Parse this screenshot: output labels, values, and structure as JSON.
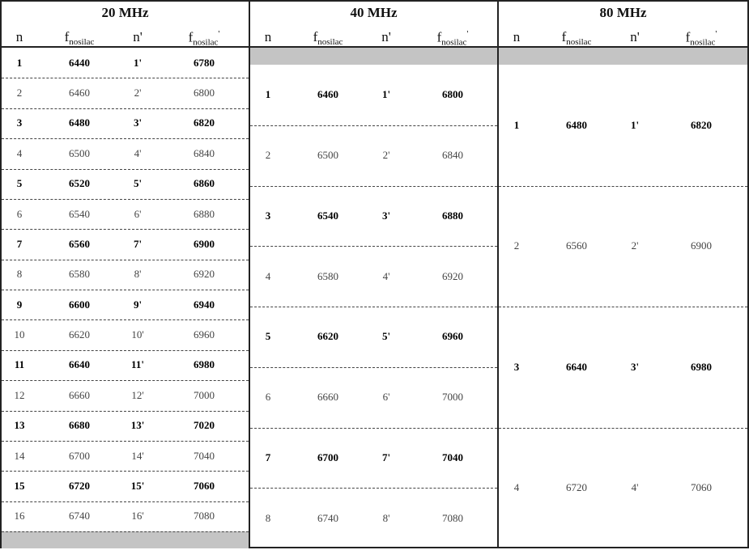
{
  "headers": {
    "n": "n",
    "f": "f",
    "f_sub": "nosilac",
    "n_prime": "n'",
    "f_prime_sub": "nosilac",
    "prime": "'"
  },
  "blocks": [
    {
      "title": "20 MHz",
      "gray_position": "bottom",
      "rows": [
        [
          "1",
          "6440",
          "1'",
          "6780"
        ],
        [
          "2",
          "6460",
          "2'",
          "6800"
        ],
        [
          "3",
          "6480",
          "3'",
          "6820"
        ],
        [
          "4",
          "6500",
          "4'",
          "6840"
        ],
        [
          "5",
          "6520",
          "5'",
          "6860"
        ],
        [
          "6",
          "6540",
          "6'",
          "6880"
        ],
        [
          "7",
          "6560",
          "7'",
          "6900"
        ],
        [
          "8",
          "6580",
          "8'",
          "6920"
        ],
        [
          "9",
          "6600",
          "9'",
          "6940"
        ],
        [
          "10",
          "6620",
          "10'",
          "6960"
        ],
        [
          "11",
          "6640",
          "11'",
          "6980"
        ],
        [
          "12",
          "6660",
          "12'",
          "7000"
        ],
        [
          "13",
          "6680",
          "13'",
          "7020"
        ],
        [
          "14",
          "6700",
          "14'",
          "7040"
        ],
        [
          "15",
          "6720",
          "15'",
          "7060"
        ],
        [
          "16",
          "6740",
          "16'",
          "7080"
        ]
      ]
    },
    {
      "title": "40 MHz",
      "gray_position": "top",
      "rows": [
        [
          "1",
          "6460",
          "1'",
          "6800"
        ],
        [
          "2",
          "6500",
          "2'",
          "6840"
        ],
        [
          "3",
          "6540",
          "3'",
          "6880"
        ],
        [
          "4",
          "6580",
          "4'",
          "6920"
        ],
        [
          "5",
          "6620",
          "5'",
          "6960"
        ],
        [
          "6",
          "6660",
          "6'",
          "7000"
        ],
        [
          "7",
          "6700",
          "7'",
          "7040"
        ],
        [
          "8",
          "6740",
          "8'",
          "7080"
        ]
      ]
    },
    {
      "title": "80 MHz",
      "gray_position": "top",
      "rows": [
        [
          "1",
          "6480",
          "1'",
          "6820"
        ],
        [
          "2",
          "6560",
          "2'",
          "6900"
        ],
        [
          "3",
          "6640",
          "3'",
          "6980"
        ],
        [
          "4",
          "6720",
          "4'",
          "7060"
        ]
      ]
    }
  ]
}
